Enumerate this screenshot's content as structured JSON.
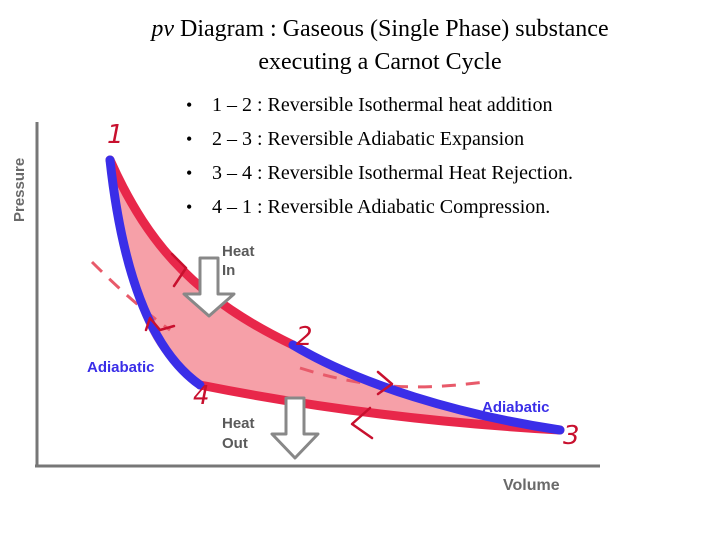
{
  "title": {
    "pv": "pv",
    "line1_rest": " Diagram : Gaseous (Single Phase) substance",
    "line2": "executing a Carnot Cycle"
  },
  "steps": [
    "1 – 2 : Reversible Isothermal heat addition",
    "2 – 3 : Reversible Adiabatic Expansion",
    "3 – 4 : Reversible Isothermal Heat Rejection.",
    "4 – 1 : Reversible Adiabatic Compression."
  ],
  "diagram": {
    "y_axis_label": "Pressure",
    "x_axis_label": "Volume",
    "heat_in": [
      "Heat",
      "In"
    ],
    "heat_out": [
      "Heat",
      "Out"
    ],
    "adiabatic_left": "Adiabatic",
    "adiabatic_right": "Adiabatic",
    "state_labels": [
      "1",
      "2",
      "3",
      "4"
    ],
    "colors": {
      "isotherm": "#e8274a",
      "adiabat": "#3a2ee8",
      "fill": "#f6a0a8",
      "annotation": "#c8102e",
      "dashed": "#e85a6a",
      "arrow_fill": "#ffffff",
      "arrow_stroke": "#888888"
    }
  }
}
